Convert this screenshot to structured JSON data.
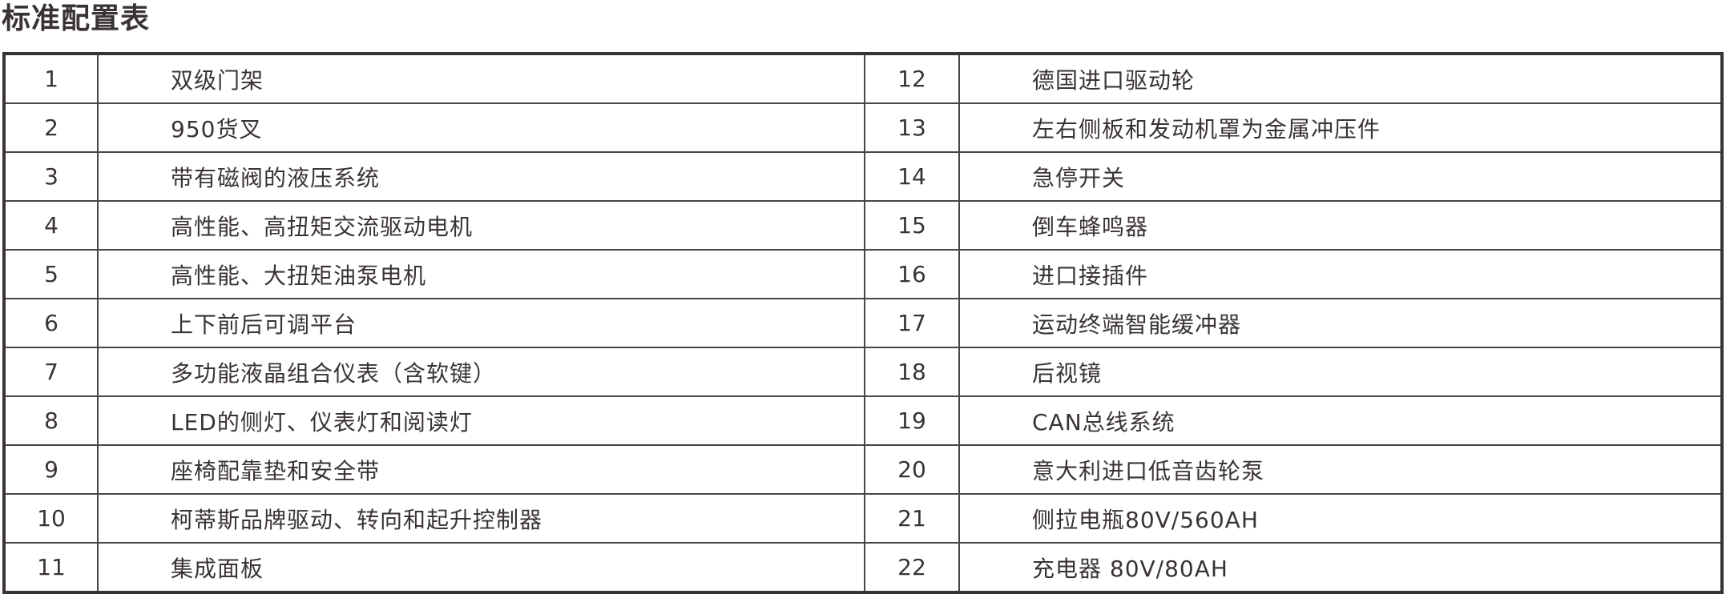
{
  "title": "标准配置表",
  "rows": [
    {
      "left_no": "1",
      "left_item": "双级门架",
      "right_no": "12",
      "right_item": "德国进口驱动轮"
    },
    {
      "left_no": "2",
      "left_item": "950货叉",
      "right_no": "13",
      "right_item": "左右侧板和发动机罩为金属冲压件"
    },
    {
      "left_no": "3",
      "left_item": "带有磁阀的液压系统",
      "right_no": "14",
      "right_item": "急停开关"
    },
    {
      "left_no": "4",
      "left_item": "高性能、高扭矩交流驱动电机",
      "right_no": "15",
      "right_item": "倒车蜂鸣器"
    },
    {
      "left_no": "5",
      "left_item": "高性能、大扭矩油泵电机",
      "right_no": "16",
      "right_item": "进口接插件"
    },
    {
      "left_no": "6",
      "left_item": "上下前后可调平台",
      "right_no": "17",
      "right_item": "运动终端智能缓冲器"
    },
    {
      "left_no": "7",
      "left_item": "多功能液晶组合仪表（含软键）",
      "right_no": "18",
      "right_item": "后视镜"
    },
    {
      "left_no": "8",
      "left_item": "LED的侧灯、仪表灯和阅读灯",
      "right_no": "19",
      "right_item": "CAN总线系统"
    },
    {
      "left_no": "9",
      "left_item": "座椅配靠垫和安全带",
      "right_no": "20",
      "right_item": "意大利进口低音齿轮泵"
    },
    {
      "left_no": "10",
      "left_item": "柯蒂斯品牌驱动、转向和起升控制器",
      "right_no": "21",
      "right_item": "侧拉电瓶80V/560AH"
    },
    {
      "left_no": "11",
      "left_item": "集成面板",
      "right_no": "22",
      "right_item": "充电器 80V/80AH"
    }
  ]
}
